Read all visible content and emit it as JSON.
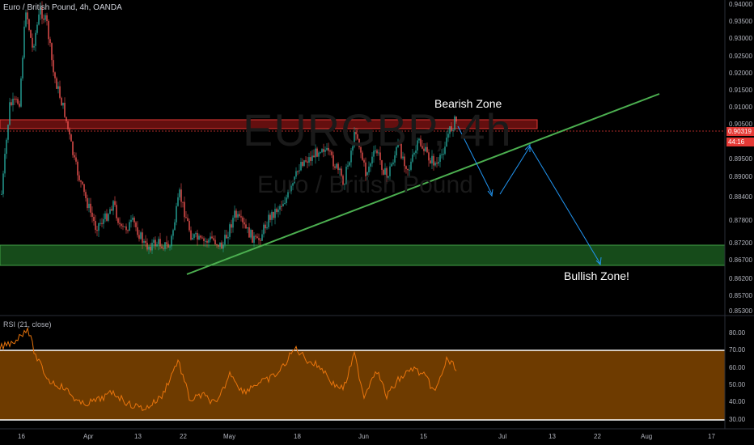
{
  "header": {
    "symbol_title": "Euro / British Pound, 4h, OANDA"
  },
  "watermark": {
    "ticker": "EURGBP, 4h",
    "name": "Euro / British Pound"
  },
  "annotations": {
    "bearish_zone": "Bearish Zone",
    "bullish_zone": "Bullish Zone!"
  },
  "price_axis": {
    "ticks": [
      "0.94000",
      "0.93500",
      "0.93000",
      "0.92500",
      "0.92000",
      "0.91500",
      "0.91000",
      "0.90500",
      "0.90000",
      "0.89500",
      "0.89000",
      "0.88400",
      "0.87800",
      "0.87200",
      "0.86700",
      "0.86200",
      "0.85700",
      "0.85300"
    ],
    "last_price": "0.90319",
    "countdown": "44:16"
  },
  "rsi": {
    "title": "RSI (21, close)",
    "ticks": [
      "80.00",
      "70.00",
      "60.00",
      "50.00",
      "40.00",
      "30.00"
    ],
    "upper_band": 70,
    "lower_band": 30
  },
  "time_axis": {
    "ticks": [
      "16",
      "Apr",
      "13",
      "22",
      "May",
      "18",
      "Jun",
      "15",
      "Jul",
      "13",
      "22",
      "Aug",
      "17"
    ]
  },
  "colors": {
    "background": "#000000",
    "bullish_candle": "#26a69a",
    "bearish_candle": "#ef5350",
    "rsi_line": "#e8740c",
    "rsi_band_fill": "#7a4100",
    "trendline": "#4caf50",
    "resistance_zone": "#b71c1c",
    "support_zone": "#1b5e20",
    "projection_arrows": "#2196f3"
  },
  "chart_data": {
    "type": "line",
    "title": "Euro / British Pound, 4h, OANDA",
    "x": [
      "16",
      "Apr",
      "13",
      "22",
      "May",
      "18",
      "Jun",
      "15"
    ],
    "series": [
      {
        "values": [
          0.887,
          0.875,
          0.871,
          0.872,
          0.872,
          0.88,
          0.896,
          0.901
        ]
      }
    ],
    "ylim": [
      0.853,
      0.94
    ],
    "resistance_zone": [
      0.901,
      0.9035
    ],
    "support_zone": [
      0.866,
      0.8715
    ],
    "grid": false
  }
}
